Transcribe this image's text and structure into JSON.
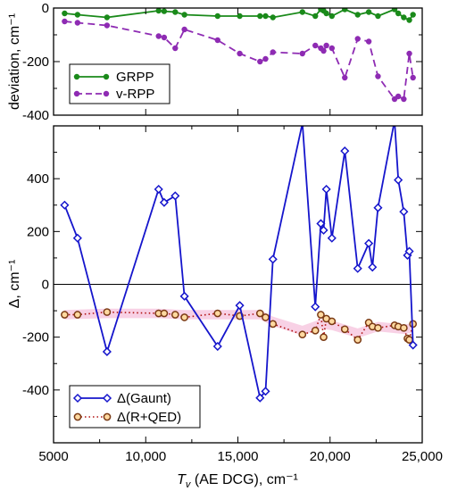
{
  "chart_data": [
    {
      "type": "line",
      "panel": "top",
      "ylabel": "deviation, cm⁻¹",
      "xlim": [
        5000,
        25000
      ],
      "ylim": [
        -400,
        0
      ],
      "yticks": [
        0,
        -200,
        -400
      ],
      "yticklabels": [
        "0",
        "-200",
        "-400"
      ],
      "legend_position": "bottom-left",
      "series": [
        {
          "name": "GRPP",
          "color": "#1a8a1a",
          "line_style": "solid",
          "marker": "filled-circle",
          "x": [
            5600,
            6300,
            7900,
            10700,
            11000,
            11600,
            12100,
            13900,
            15100,
            16200,
            16500,
            16900,
            18500,
            19200,
            19500,
            19650,
            19800,
            20100,
            20800,
            21500,
            22100,
            22600,
            23500,
            23700,
            24000,
            24300,
            24500
          ],
          "y": [
            -20,
            -25,
            -35,
            -10,
            -12,
            -15,
            -25,
            -30,
            -30,
            -30,
            -30,
            -35,
            -15,
            -30,
            -5,
            -10,
            -20,
            -30,
            -5,
            -25,
            -15,
            -30,
            -5,
            -20,
            -35,
            -45,
            -25
          ]
        },
        {
          "name": "v-RPP",
          "color": "#8e2bb3",
          "line_style": "dashed",
          "marker": "filled-circle",
          "x": [
            5600,
            6300,
            7900,
            10700,
            11000,
            11600,
            12100,
            13900,
            15100,
            16200,
            16500,
            16900,
            18500,
            19200,
            19500,
            19650,
            19800,
            20100,
            20800,
            21500,
            22100,
            22600,
            23500,
            23700,
            24000,
            24300,
            24500
          ],
          "y": [
            -50,
            -55,
            -65,
            -105,
            -110,
            -150,
            -80,
            -120,
            -170,
            -200,
            -190,
            -165,
            -170,
            -140,
            -150,
            -160,
            -140,
            -150,
            -260,
            -115,
            -125,
            -255,
            -340,
            -330,
            -340,
            -170,
            -260
          ]
        }
      ]
    },
    {
      "type": "line",
      "panel": "bottom",
      "xlabel_prefix": "T",
      "xlabel_sub": "v",
      "xlabel_suffix": " (AE DCG), cm⁻¹",
      "ylabel": "Δ, cm⁻¹",
      "xlim": [
        5000,
        25000
      ],
      "ylim": [
        -600,
        600
      ],
      "xticks": [
        5000,
        10000,
        15000,
        20000,
        25000
      ],
      "xticklabels": [
        "5000",
        "10,000",
        "15,000",
        "20,000",
        "25,000"
      ],
      "yticks": [
        -400,
        -200,
        0,
        200,
        400
      ],
      "yticklabels": [
        "-400",
        "-200",
        "0",
        "200",
        "400"
      ],
      "zero_line": true,
      "legend_position": "bottom-left",
      "series": [
        {
          "name": "Δ(Gaunt)",
          "color": "#1515cc",
          "line_style": "solid",
          "marker": "open-diamond",
          "x": [
            5600,
            6300,
            7900,
            10700,
            11000,
            11600,
            12100,
            13900,
            15100,
            16200,
            16500,
            16900,
            18500,
            19200,
            19500,
            19650,
            19800,
            20100,
            20800,
            21500,
            22100,
            22300,
            22600,
            23500,
            23700,
            24000,
            24200,
            24300,
            24500
          ],
          "y": [
            300,
            175,
            -255,
            360,
            310,
            335,
            -45,
            -235,
            -80,
            -430,
            -405,
            95,
            610,
            -85,
            230,
            205,
            360,
            175,
            505,
            60,
            155,
            65,
            290,
            620,
            395,
            275,
            110,
            125,
            -230
          ]
        },
        {
          "name": "Δ(R+QED)",
          "color": "#7a3a14",
          "marker_fill": "#ffd9a0",
          "line_style": "dotted",
          "marker": "open-circle",
          "x": [
            5600,
            6300,
            7900,
            10700,
            11000,
            11600,
            12100,
            13900,
            15100,
            16200,
            16500,
            16900,
            18500,
            19200,
            19500,
            19650,
            19800,
            20100,
            20800,
            21500,
            22100,
            22300,
            22600,
            23500,
            23700,
            24000,
            24200,
            24300,
            24500
          ],
          "y": [
            -115,
            -115,
            -105,
            -110,
            -110,
            -115,
            -125,
            -110,
            -120,
            -110,
            -125,
            -150,
            -190,
            -175,
            -115,
            -200,
            -130,
            -140,
            -170,
            -210,
            -145,
            -160,
            -165,
            -155,
            -160,
            -165,
            -205,
            -210,
            -150
          ]
        }
      ],
      "uncertainty_band": {
        "color": "#f6c2dc",
        "x": [
          5600,
          7900,
          10700,
          12100,
          13900,
          16200,
          16900,
          18500,
          19500,
          20100,
          21500,
          22600,
          24000,
          24500
        ],
        "y": [
          -115,
          -110,
          -110,
          -115,
          -115,
          -115,
          -140,
          -175,
          -150,
          -155,
          -185,
          -160,
          -170,
          -165
        ],
        "half_width": 18
      }
    }
  ]
}
